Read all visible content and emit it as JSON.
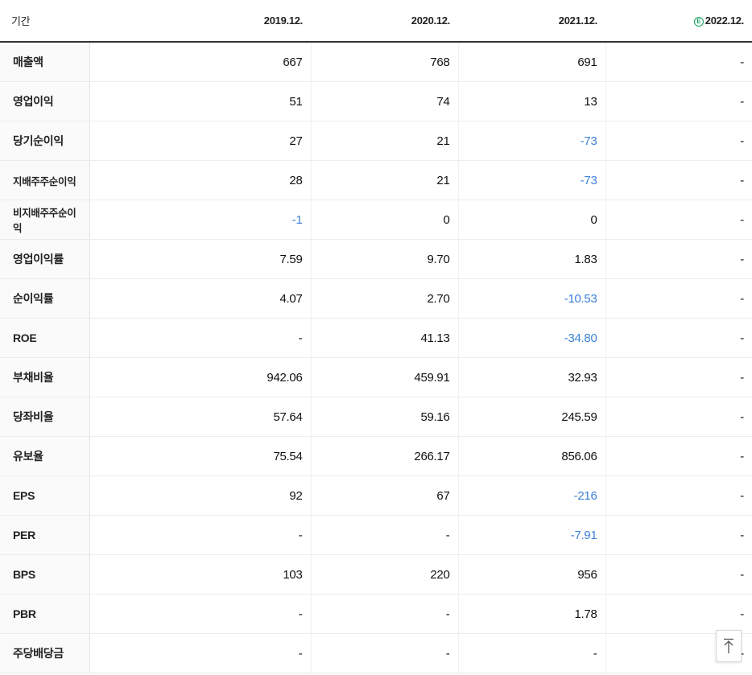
{
  "header": {
    "period_label": "기간",
    "columns": [
      "2019.12.",
      "2020.12.",
      "2021.12.",
      "2022.12."
    ],
    "estimate_marker": "E"
  },
  "rows": [
    {
      "label": "매출액",
      "values": [
        "667",
        "768",
        "691",
        "-"
      ],
      "negative": [
        false,
        false,
        false,
        false
      ]
    },
    {
      "label": "영업이익",
      "values": [
        "51",
        "74",
        "13",
        "-"
      ],
      "negative": [
        false,
        false,
        false,
        false
      ]
    },
    {
      "label": "당기순이익",
      "values": [
        "27",
        "21",
        "-73",
        "-"
      ],
      "negative": [
        false,
        false,
        true,
        false
      ]
    },
    {
      "label": "지배주주순이익",
      "values": [
        "28",
        "21",
        "-73",
        "-"
      ],
      "negative": [
        false,
        false,
        true,
        false
      ]
    },
    {
      "label": "비지배주주순이익",
      "values": [
        "-1",
        "0",
        "0",
        "-"
      ],
      "negative": [
        true,
        false,
        false,
        false
      ]
    },
    {
      "label": "영업이익률",
      "values": [
        "7.59",
        "9.70",
        "1.83",
        "-"
      ],
      "negative": [
        false,
        false,
        false,
        false
      ]
    },
    {
      "label": "순이익률",
      "values": [
        "4.07",
        "2.70",
        "-10.53",
        "-"
      ],
      "negative": [
        false,
        false,
        true,
        false
      ]
    },
    {
      "label": "ROE",
      "values": [
        "-",
        "41.13",
        "-34.80",
        "-"
      ],
      "negative": [
        false,
        false,
        true,
        false
      ]
    },
    {
      "label": "부채비율",
      "values": [
        "942.06",
        "459.91",
        "32.93",
        "-"
      ],
      "negative": [
        false,
        false,
        false,
        false
      ]
    },
    {
      "label": "당좌비율",
      "values": [
        "57.64",
        "59.16",
        "245.59",
        "-"
      ],
      "negative": [
        false,
        false,
        false,
        false
      ]
    },
    {
      "label": "유보율",
      "values": [
        "75.54",
        "266.17",
        "856.06",
        "-"
      ],
      "negative": [
        false,
        false,
        false,
        false
      ]
    },
    {
      "label": "EPS",
      "values": [
        "92",
        "67",
        "-216",
        "-"
      ],
      "negative": [
        false,
        false,
        true,
        false
      ]
    },
    {
      "label": "PER",
      "values": [
        "-",
        "-",
        "-7.91",
        "-"
      ],
      "negative": [
        false,
        false,
        true,
        false
      ]
    },
    {
      "label": "BPS",
      "values": [
        "103",
        "220",
        "956",
        "-"
      ],
      "negative": [
        false,
        false,
        false,
        false
      ]
    },
    {
      "label": "PBR",
      "values": [
        "-",
        "-",
        "1.78",
        "-"
      ],
      "negative": [
        false,
        false,
        false,
        false
      ]
    },
    {
      "label": "주당배당금",
      "values": [
        "-",
        "-",
        "-",
        "-"
      ],
      "negative": [
        false,
        false,
        false,
        false
      ]
    }
  ],
  "colors": {
    "negative": "#3b82d6",
    "estimate": "#1aa260",
    "header_rule": "#333333"
  },
  "scroll_top_icon": "arrow-up-to-top-icon"
}
